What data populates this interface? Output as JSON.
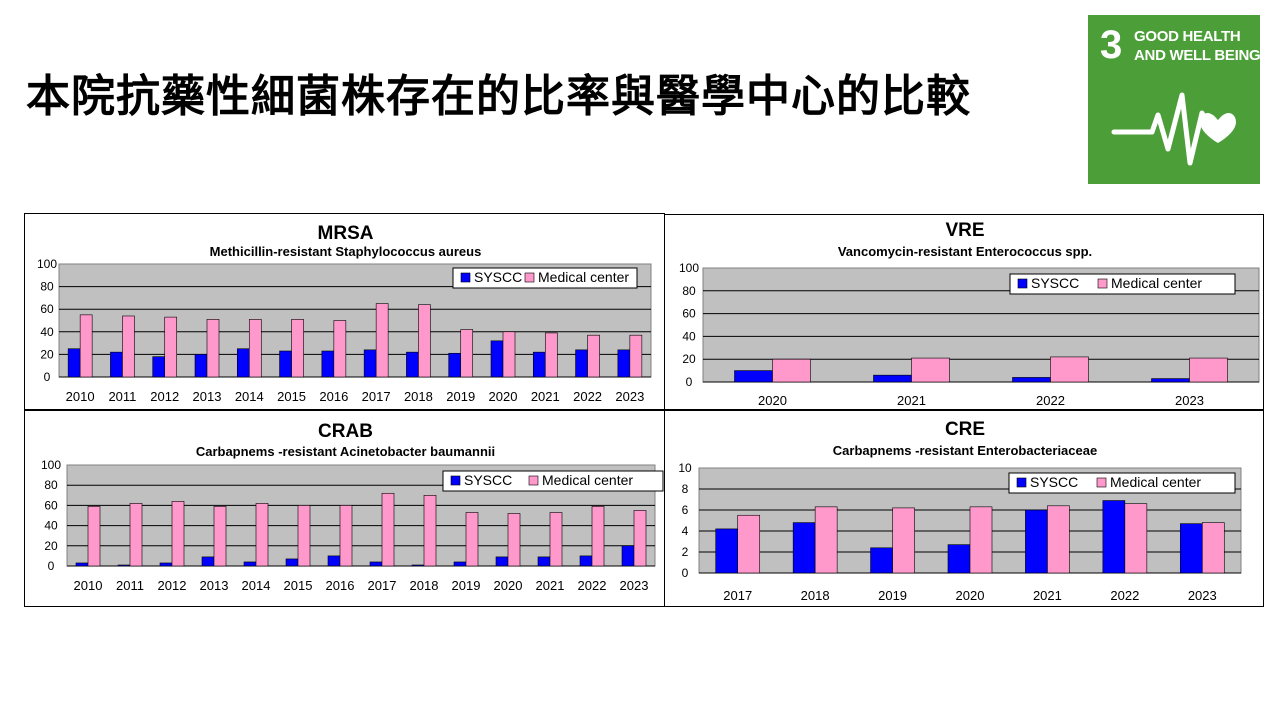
{
  "page": {
    "title": "本院抗藥性細菌株存在的比率與醫學中心的比較"
  },
  "sdg": {
    "number": "3",
    "line1": "GOOD HEALTH",
    "line2": "AND WELL BEING",
    "icon": "heartbeat-heart-icon",
    "color": "#4c9f38"
  },
  "colors": {
    "syscc": "#0000ff",
    "medical": "#ff99cc",
    "plot_bg": "#c0c0c0"
  },
  "chart_data": [
    {
      "id": "mrsa",
      "type": "bar",
      "title": "MRSA",
      "subtitle": "Methicillin-resistant Staphylococcus aureus",
      "categories": [
        "2010",
        "2011",
        "2012",
        "2013",
        "2014",
        "2015",
        "2016",
        "2017",
        "2018",
        "2019",
        "2020",
        "2021",
        "2022",
        "2023"
      ],
      "series": [
        {
          "name": "SYSCC",
          "values": [
            25,
            22,
            18,
            20,
            25,
            23,
            23,
            24,
            22,
            21,
            32,
            22,
            24,
            24
          ]
        },
        {
          "name": "Medical center",
          "values": [
            55,
            54,
            53,
            51,
            51,
            51,
            50,
            65,
            64,
            42,
            40,
            39,
            37,
            37
          ]
        }
      ],
      "ylim": [
        0,
        100
      ],
      "yticks": [
        "0",
        "20",
        "40",
        "60",
        "80",
        "100"
      ],
      "grid": true,
      "legend": "top-right"
    },
    {
      "id": "vre",
      "type": "bar",
      "title": "VRE",
      "subtitle": "Vancomycin-resistant Enterococcus spp.",
      "categories": [
        "2020",
        "2021",
        "2022",
        "2023"
      ],
      "series": [
        {
          "name": "SYSCC",
          "values": [
            10,
            6,
            4,
            3
          ]
        },
        {
          "name": "Medical center",
          "values": [
            20,
            21,
            22,
            21
          ]
        }
      ],
      "ylim": [
        0,
        100
      ],
      "yticks": [
        "0",
        "20",
        "40",
        "60",
        "80",
        "100"
      ],
      "grid": true,
      "legend": "top-right"
    },
    {
      "id": "crab",
      "type": "bar",
      "title": "CRAB",
      "subtitle": "Carbapnems -resistant Acinetobacter baumannii",
      "categories": [
        "2010",
        "2011",
        "2012",
        "2013",
        "2014",
        "2015",
        "2016",
        "2017",
        "2018",
        "2019",
        "2020",
        "2021",
        "2022",
        "2023"
      ],
      "series": [
        {
          "name": "SYSCC",
          "values": [
            3,
            1,
            3,
            9,
            4,
            7,
            10,
            4,
            1,
            4,
            9,
            9,
            10,
            20
          ]
        },
        {
          "name": "Medical center",
          "values": [
            59,
            62,
            64,
            59,
            62,
            60,
            60,
            72,
            70,
            53,
            52,
            53,
            59,
            55
          ]
        }
      ],
      "ylim": [
        0,
        100
      ],
      "yticks": [
        "0",
        "20",
        "40",
        "60",
        "80",
        "100"
      ],
      "grid": true,
      "legend": "top-right"
    },
    {
      "id": "cre",
      "type": "bar",
      "title": "CRE",
      "subtitle": "Carbapnems -resistant Enterobacteriaceae",
      "categories": [
        "2017",
        "2018",
        "2019",
        "2020",
        "2021",
        "2022",
        "2023"
      ],
      "series": [
        {
          "name": "SYSCC",
          "values": [
            4.2,
            4.8,
            2.4,
            2.7,
            6.0,
            6.9,
            4.7
          ]
        },
        {
          "name": "Medical center",
          "values": [
            5.5,
            6.3,
            6.2,
            6.3,
            6.4,
            6.6,
            4.8
          ]
        }
      ],
      "ylim": [
        0,
        10
      ],
      "yticks": [
        "0",
        "2",
        "4",
        "6",
        "8",
        "10"
      ],
      "grid": true,
      "legend": "top-right"
    }
  ]
}
